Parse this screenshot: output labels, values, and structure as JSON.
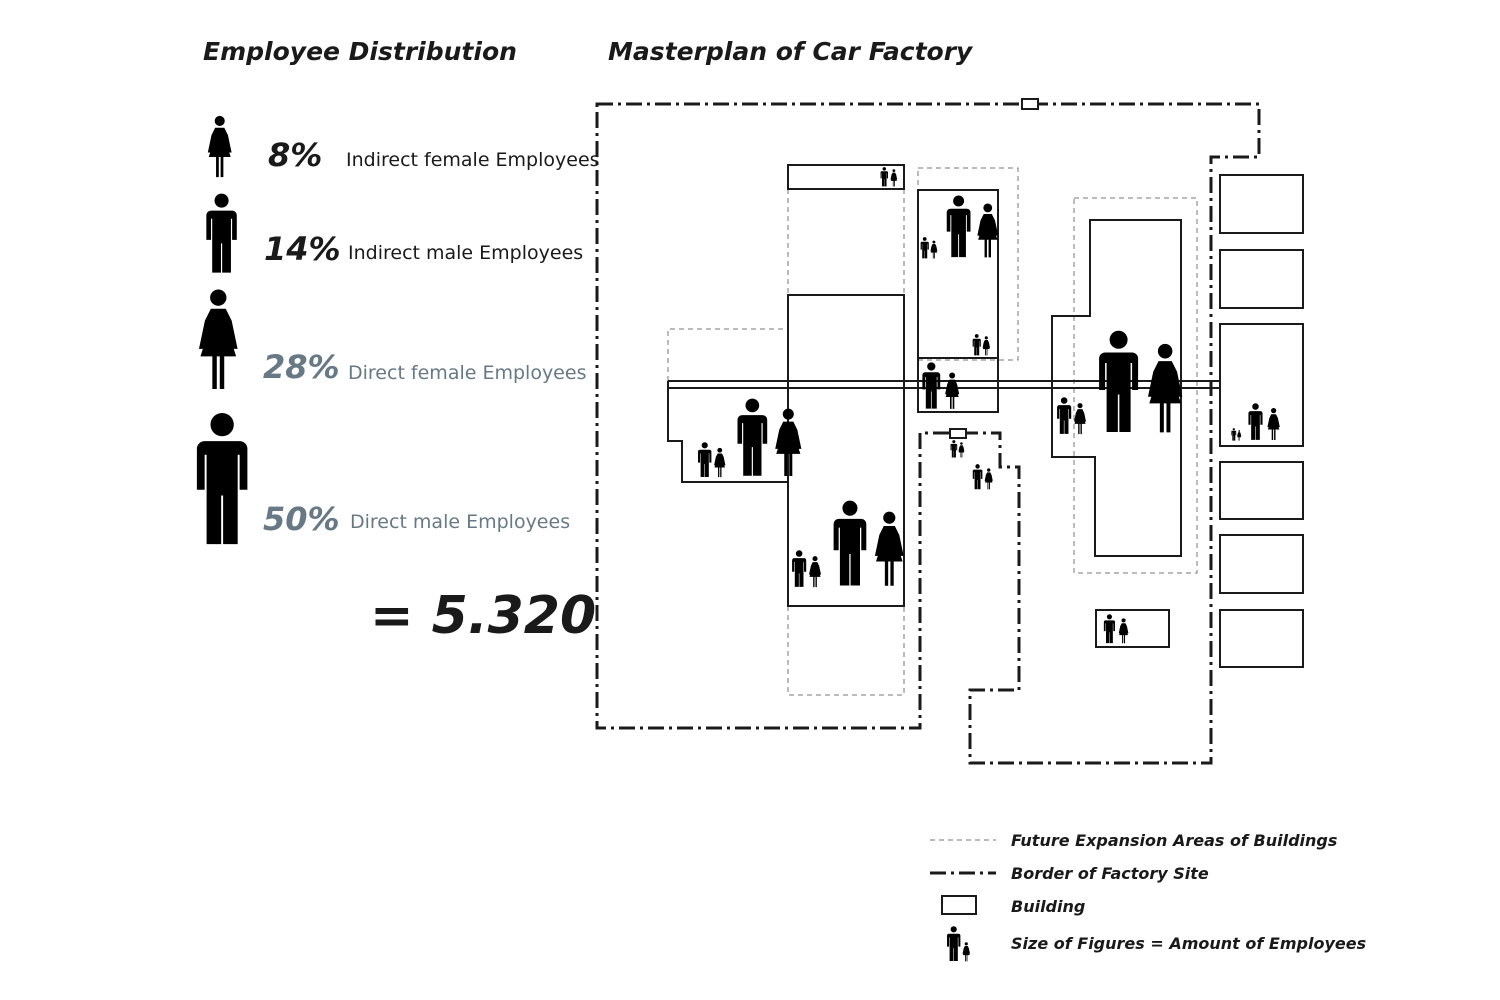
{
  "distribution": {
    "title": "Employee Distribution",
    "items": [
      {
        "percent": "8%",
        "label": "Indirect female Employees"
      },
      {
        "percent": "14%",
        "label": "Indirect male Employees"
      },
      {
        "percent": "28%",
        "label": "Direct female Employees"
      },
      {
        "percent": "50%",
        "label": "Direct male Employees"
      }
    ],
    "total": "= 5.320"
  },
  "masterplan": {
    "title": "Masterplan of Car Factory"
  },
  "legend": [
    {
      "label": "Future Expansion Areas of Buildings"
    },
    {
      "label": "Border of Factory Site"
    },
    {
      "label": "Building"
    },
    {
      "label": "Size of Figures  = Amount of Employees"
    }
  ]
}
